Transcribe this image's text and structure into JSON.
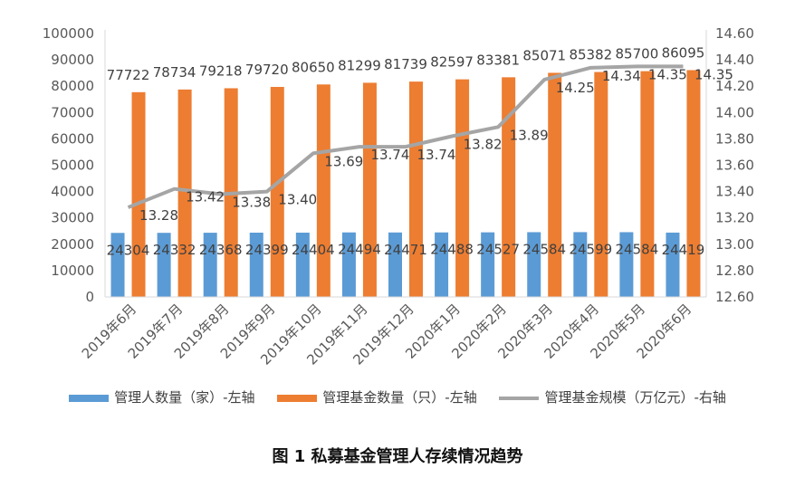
{
  "chart_data": {
    "type": "bar",
    "title": "图 1  私募基金管理人存续情况趋势",
    "categories": [
      "2019年6月",
      "2019年7月",
      "2019年8月",
      "2019年9月",
      "2019年10月",
      "2019年11月",
      "2019年12月",
      "2020年1月",
      "2020年2月",
      "2020年3月",
      "2020年4月",
      "2020年5月",
      "2020年6月"
    ],
    "series": [
      {
        "name": "管理人数量（家）-左轴",
        "type": "bar",
        "axis": "left",
        "color": "#5b9bd5",
        "values": [
          24304,
          24332,
          24368,
          24399,
          24404,
          24494,
          24471,
          24488,
          24527,
          24584,
          24599,
          24584,
          24419
        ]
      },
      {
        "name": "管理基金数量（只）-左轴",
        "type": "bar",
        "axis": "left",
        "color": "#ed7d31",
        "values": [
          77722,
          78734,
          79218,
          79720,
          80650,
          81299,
          81739,
          82597,
          83381,
          85071,
          85382,
          85700,
          86095
        ]
      },
      {
        "name": "管理基金规模（万亿元）-右轴",
        "type": "line",
        "axis": "right",
        "color": "#a5a5a5",
        "values": [
          13.28,
          13.42,
          13.38,
          13.4,
          13.69,
          13.74,
          13.74,
          13.82,
          13.89,
          14.25,
          14.34,
          14.35,
          14.35
        ],
        "labels": [
          "13.28",
          "13.42",
          "13.38",
          "13.40",
          "13.69",
          "13.74",
          "13.74",
          "13.82",
          "13.89",
          "14.25",
          "14.34",
          "14.35",
          "14.35"
        ]
      }
    ],
    "y_left": {
      "min": 0,
      "max": 100000,
      "ticks": [
        "0",
        "10000",
        "20000",
        "30000",
        "40000",
        "50000",
        "60000",
        "70000",
        "80000",
        "90000",
        "100000"
      ]
    },
    "y_right": {
      "min": 12.6,
      "max": 14.6,
      "ticks": [
        "12.60",
        "12.80",
        "13.00",
        "13.20",
        "13.40",
        "13.60",
        "13.80",
        "14.00",
        "14.20",
        "14.40",
        "14.60"
      ]
    },
    "grid": false,
    "legend": "bottom"
  }
}
